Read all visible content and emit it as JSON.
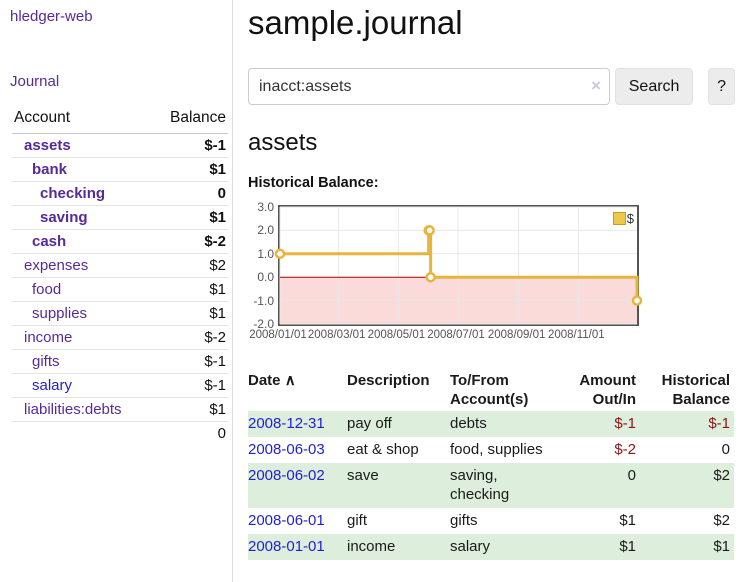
{
  "app_title": "hledger-web",
  "sidebar": {
    "journal_link": "Journal",
    "account_header": "Account",
    "balance_header": "Balance",
    "accounts": [
      {
        "label": "assets",
        "balance": "$-1",
        "label_class": "ind1 bold",
        "balance_class": "neg-strong bold"
      },
      {
        "label": "bank",
        "balance": "$1",
        "label_class": "ind2 bold",
        "balance_class": "bold"
      },
      {
        "label": "checking",
        "balance": "0",
        "label_class": "ind3 bold",
        "balance_class": "bold"
      },
      {
        "label": "saving",
        "balance": "$1",
        "label_class": "ind3 bold",
        "balance_class": "bold"
      },
      {
        "label": "cash",
        "balance": "$-2",
        "label_class": "ind2 bold",
        "balance_class": "neg-strong bold"
      },
      {
        "label": "expenses",
        "balance": "$2",
        "label_class": "ind1",
        "balance_class": ""
      },
      {
        "label": "food",
        "balance": "$1",
        "label_class": "ind2",
        "balance_class": ""
      },
      {
        "label": "supplies",
        "balance": "$1",
        "label_class": "ind2",
        "balance_class": ""
      },
      {
        "label": "income",
        "balance": "$-2",
        "label_class": "ind1",
        "balance_class": "neg-soft"
      },
      {
        "label": "gifts",
        "balance": "$-1",
        "label_class": "ind2",
        "balance_class": "neg-soft"
      },
      {
        "label": "salary",
        "balance": "$-1",
        "label_class": "ind2 blue",
        "balance_class": "neg-soft"
      },
      {
        "label": "liabilities:debts",
        "balance": "$1",
        "label_class": "ind1",
        "balance_class": ""
      }
    ],
    "total_balance": "0"
  },
  "main": {
    "title": "sample.journal",
    "search": {
      "value": "inacct:assets",
      "clear_icon": "×",
      "button_label": "Search",
      "help_label": "?"
    },
    "account_heading": "assets",
    "chart_label": "Historical Balance:"
  },
  "register": {
    "headers": {
      "date": "Date",
      "sort_icon": "∧",
      "description": "Description",
      "accounts_line1": "To/From",
      "accounts_line2": "Account(s)",
      "amount_line1": "Amount",
      "amount_line2": "Out/In",
      "balance_line1": "Historical",
      "balance_line2": "Balance"
    },
    "rows": [
      {
        "date": "2008-12-31",
        "description": "pay off",
        "accounts": "debts",
        "amount": "$-1",
        "amount_class": "neg",
        "balance": "$-1",
        "balance_class": "neg"
      },
      {
        "date": "2008-06-03",
        "description": "eat & shop",
        "accounts": "food, supplies",
        "amount": "$-2",
        "amount_class": "neg",
        "balance": "0",
        "balance_class": ""
      },
      {
        "date": "2008-06-02",
        "description": "save",
        "accounts": "saving, checking",
        "amount": "0",
        "amount_class": "",
        "balance": "$2",
        "balance_class": ""
      },
      {
        "date": "2008-06-01",
        "description": "gift",
        "accounts": "gifts",
        "amount": "$1",
        "amount_class": "",
        "balance": "$2",
        "balance_class": ""
      },
      {
        "date": "2008-01-01",
        "description": "income",
        "accounts": "salary",
        "amount": "$1",
        "amount_class": "",
        "balance": "$1",
        "balance_class": ""
      }
    ]
  },
  "chart_data": {
    "type": "line",
    "title": "Historical Balance:",
    "x_range": [
      "2008-01-01",
      "2008-12-31"
    ],
    "ylim": [
      -2,
      3
    ],
    "y_ticks": [
      3.0,
      2.0,
      1.0,
      0.0,
      -1.0,
      -2.0
    ],
    "x_ticks": [
      "2008/01/01",
      "2008/03/01",
      "2008/05/01",
      "2008/07/01",
      "2008/09/01",
      "2008/11/01"
    ],
    "x_tick_dates": [
      "2008-01-01",
      "2008-03-01",
      "2008-05-01",
      "2008-07-01",
      "2008-09-01",
      "2008-11-01"
    ],
    "series": [
      {
        "name": "$",
        "color": "#e7b53c",
        "points": [
          [
            "2008-01-01",
            1
          ],
          [
            "2008-06-01",
            2
          ],
          [
            "2008-06-02",
            2
          ],
          [
            "2008-06-03",
            0
          ],
          [
            "2008-12-31",
            -1
          ]
        ]
      }
    ],
    "legend": {
      "label": "$",
      "position": "top-right",
      "swatch_fill": "#ecc94b",
      "swatch_border": "#c9992a"
    },
    "grid": true,
    "grid_color": "#e8e8e8",
    "zero_line_color": "#a40000",
    "negative_region_color": "#fbdada",
    "plot_border_color": "#545454"
  }
}
